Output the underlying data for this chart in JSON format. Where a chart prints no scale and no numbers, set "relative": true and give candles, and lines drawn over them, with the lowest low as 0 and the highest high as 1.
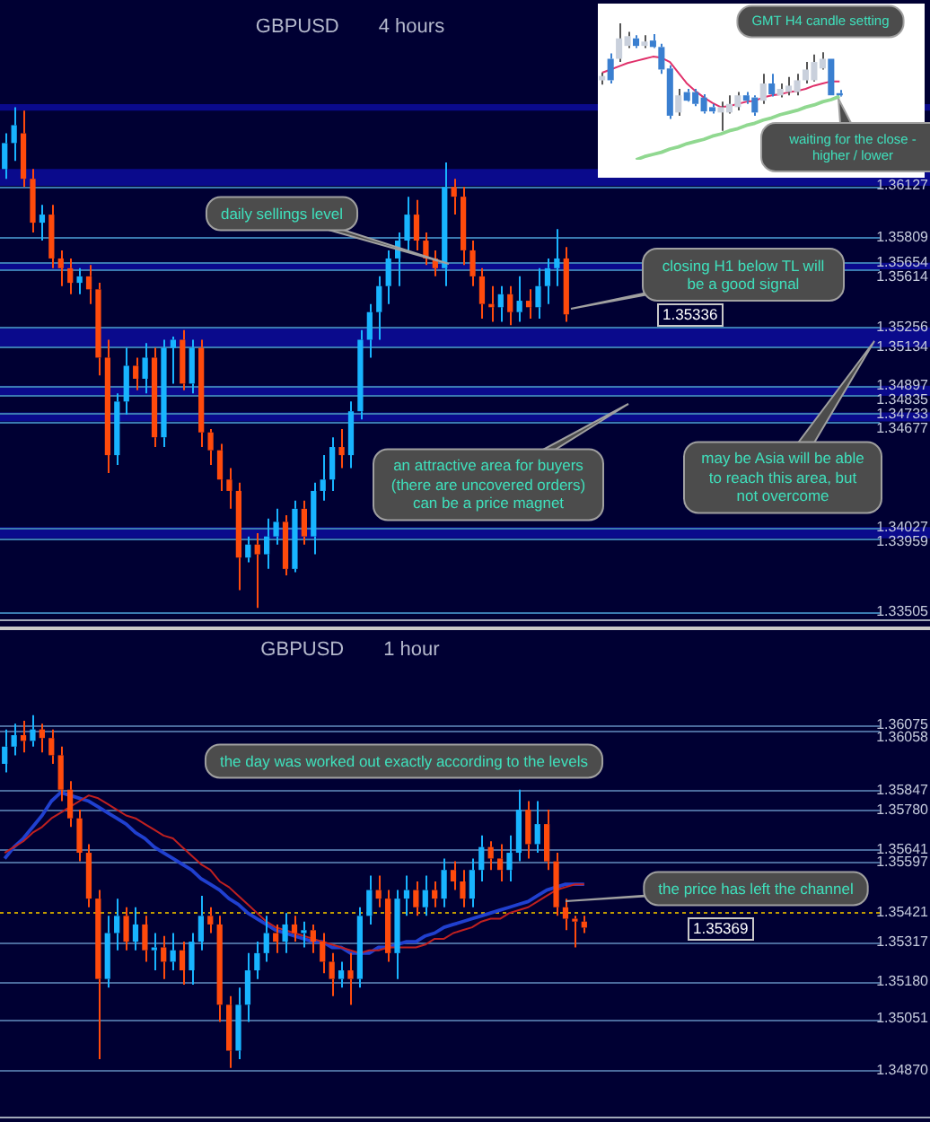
{
  "chart_data": [
    {
      "type": "candlestick",
      "title": "GBPUSD      4 hours",
      "tick_labels": false,
      "ylim": [
        1.3346,
        1.3727
      ],
      "categories": [
        null,
        null,
        null,
        null,
        null,
        null,
        null,
        null,
        null,
        null,
        null,
        null,
        null,
        null,
        null,
        null,
        null,
        null,
        null,
        null,
        null,
        null,
        null,
        null,
        null,
        null,
        null,
        null,
        null,
        null,
        null,
        null,
        null,
        null,
        null,
        null,
        null,
        null,
        null,
        null,
        null,
        null,
        null,
        null,
        null,
        null,
        null,
        null,
        null,
        null,
        null,
        null,
        null,
        null,
        null,
        null,
        null,
        null,
        null,
        null,
        null
      ],
      "ohlc": [
        [
          1.3623,
          1.3645,
          1.3617,
          1.3639
        ],
        [
          1.3639,
          1.3661,
          1.3628,
          1.365
        ],
        [
          1.3645,
          1.3659,
          1.3612,
          1.3617
        ],
        [
          1.3617,
          1.3623,
          1.3584,
          1.359
        ],
        [
          1.359,
          1.3601,
          1.3579,
          1.3595
        ],
        [
          1.3595,
          1.3601,
          1.3562,
          1.3568
        ],
        [
          1.3568,
          1.3573,
          1.3551,
          1.3562
        ],
        [
          1.3562,
          1.3568,
          1.3546,
          1.3553
        ],
        [
          1.3553,
          1.3562,
          1.3546,
          1.3557
        ],
        [
          1.3557,
          1.3564,
          1.354,
          1.3549
        ],
        [
          1.3549,
          1.3553,
          1.3496,
          1.3507
        ],
        [
          1.3507,
          1.3518,
          1.3436,
          1.3447
        ],
        [
          1.3447,
          1.3485,
          1.3441,
          1.348
        ],
        [
          1.348,
          1.3513,
          1.3472,
          1.3502
        ],
        [
          1.3502,
          1.3507,
          1.3487,
          1.3494
        ],
        [
          1.3494,
          1.3516,
          1.3485,
          1.3507
        ],
        [
          1.3507,
          1.3513,
          1.3452,
          1.3458
        ],
        [
          1.3458,
          1.3518,
          1.3452,
          1.3513
        ],
        [
          1.3513,
          1.352,
          1.3491,
          1.3518
        ],
        [
          1.3518,
          1.3524,
          1.3487,
          1.3491
        ],
        [
          1.3491,
          1.3518,
          1.3485,
          1.3513
        ],
        [
          1.3513,
          1.3518,
          1.3452,
          1.3461
        ],
        [
          1.3461,
          1.3463,
          1.3441,
          1.345
        ],
        [
          1.345,
          1.3454,
          1.3425,
          1.3432
        ],
        [
          1.3432,
          1.3439,
          1.3414,
          1.3425
        ],
        [
          1.3425,
          1.343,
          1.3364,
          1.3384
        ],
        [
          1.3384,
          1.3397,
          1.3381,
          1.3392
        ],
        [
          1.3392,
          1.3399,
          1.3353,
          1.3386
        ],
        [
          1.3386,
          1.3408,
          1.3377,
          1.3397
        ],
        [
          1.3397,
          1.3414,
          1.3392,
          1.3406
        ],
        [
          1.3406,
          1.341,
          1.3373,
          1.3377
        ],
        [
          1.3377,
          1.3419,
          1.3375,
          1.3414
        ],
        [
          1.3414,
          1.3419,
          1.3392,
          1.3397
        ],
        [
          1.3397,
          1.343,
          1.3386,
          1.3425
        ],
        [
          1.3425,
          1.3447,
          1.3419,
          1.3432
        ],
        [
          1.3432,
          1.3458,
          1.3425,
          1.3452
        ],
        [
          1.3452,
          1.3463,
          1.3439,
          1.3447
        ],
        [
          1.3447,
          1.348,
          1.3439,
          1.3474
        ],
        [
          1.3474,
          1.3524,
          1.3469,
          1.3518
        ],
        [
          1.3518,
          1.354,
          1.3507,
          1.3535
        ],
        [
          1.3535,
          1.3557,
          1.3518,
          1.3551
        ],
        [
          1.3551,
          1.3573,
          1.354,
          1.3568
        ],
        [
          1.3568,
          1.3584,
          1.3551,
          1.3579
        ],
        [
          1.3579,
          1.3606,
          1.3573,
          1.3595
        ],
        [
          1.3595,
          1.3604,
          1.3573,
          1.3579
        ],
        [
          1.3579,
          1.3584,
          1.3564,
          1.3568
        ],
        [
          1.3568,
          1.3573,
          1.3557,
          1.3562
        ],
        [
          1.3562,
          1.3627,
          1.3551,
          1.3612
        ],
        [
          1.3612,
          1.3617,
          1.3595,
          1.3606
        ],
        [
          1.3606,
          1.3612,
          1.3564,
          1.3573
        ],
        [
          1.3573,
          1.3579,
          1.3551,
          1.3557
        ],
        [
          1.3557,
          1.3562,
          1.3531,
          1.354
        ],
        [
          1.354,
          1.3551,
          1.3529,
          1.3538
        ],
        [
          1.3538,
          1.3551,
          1.3529,
          1.3546
        ],
        [
          1.3546,
          1.3551,
          1.3527,
          1.3535
        ],
        [
          1.3535,
          1.3557,
          1.3529,
          1.3542
        ],
        [
          1.3542,
          1.3549,
          1.3531,
          1.3538
        ],
        [
          1.3538,
          1.3562,
          1.3531,
          1.3551
        ],
        [
          1.3551,
          1.3568,
          1.354,
          1.3562
        ],
        [
          1.3562,
          1.3586,
          1.3551,
          1.3568
        ],
        [
          1.3568,
          1.3575,
          1.3529,
          1.35336
        ]
      ],
      "bands": [
        {
          "axis": "y",
          "from": 1.36127,
          "to": 1.3623,
          "color": "#0a0a8c"
        },
        {
          "axis": "y",
          "from": 1.3659,
          "to": 1.3663,
          "color": "#0a0a8c"
        },
        {
          "axis": "y",
          "from": 1.35614,
          "to": 1.35654,
          "color": "#0a0a8c"
        },
        {
          "axis": "y",
          "from": 1.35134,
          "to": 1.35256,
          "color": "#0a0a8c"
        },
        {
          "axis": "y",
          "from": 1.34835,
          "to": 1.34897,
          "color": "#0a0a8c"
        },
        {
          "axis": "y",
          "from": 1.34677,
          "to": 1.34733,
          "color": "#0a0a8c"
        },
        {
          "axis": "y",
          "from": 1.33959,
          "to": 1.34027,
          "color": "#0a0a8c"
        }
      ],
      "ref_lines": [
        {
          "axis": "y",
          "value": 1.36127,
          "label": "1.36127",
          "color": "#3a7ab0"
        },
        {
          "axis": "y",
          "value": 1.35809,
          "label": "1.35809",
          "color": "#3a7ab0"
        },
        {
          "axis": "y",
          "value": 1.35654,
          "label": "1.35654",
          "color": "#3a7ab0"
        },
        {
          "axis": "y",
          "value": 1.35614,
          "label": "1.35614",
          "color": "#3a7ab0"
        },
        {
          "axis": "y",
          "value": 1.35256,
          "label": "1.35256",
          "color": "#3a7ab0"
        },
        {
          "axis": "y",
          "value": 1.35134,
          "label": "1.35134",
          "color": "#3a7ab0"
        },
        {
          "axis": "y",
          "value": 1.34897,
          "label": "1.34897",
          "color": "#3a7ab0"
        },
        {
          "axis": "y",
          "value": 1.34835,
          "label": "1.34835",
          "color": "#3a7ab0"
        },
        {
          "axis": "y",
          "value": 1.34733,
          "label": "1.34733",
          "color": "#3a7ab0"
        },
        {
          "axis": "y",
          "value": 1.34677,
          "label": "1.34677",
          "color": "#3a7ab0"
        },
        {
          "axis": "y",
          "value": 1.34027,
          "label": "1.34027",
          "color": "#3a7ab0"
        },
        {
          "axis": "y",
          "value": 1.33959,
          "label": "1.33959",
          "color": "#3a7ab0"
        },
        {
          "axis": "y",
          "value": 1.33505,
          "label": "1.33505",
          "color": "#3a7ab0"
        }
      ],
      "annotations": [
        "daily sellings level",
        "closing H1 below TL will be a good signal",
        "1.35336",
        "an attractive area for buyers (there are uncovered orders) can be a price magnet",
        "may be Asia will be able to reach this area, but not overcome"
      ]
    },
    {
      "type": "candlestick",
      "relative": true,
      "tick_labels": false,
      "categories": [
        null,
        null,
        null,
        null,
        null,
        null,
        null,
        null,
        null,
        null,
        null,
        null,
        null,
        null,
        null,
        null,
        null,
        null,
        null,
        null,
        null,
        null,
        null,
        null,
        null,
        null,
        null,
        null,
        null
      ],
      "ohlc": [
        [
          0.47,
          0.54,
          0.43,
          0.51
        ],
        [
          0.67,
          0.72,
          0.44,
          0.47
        ],
        [
          0.67,
          1,
          0.64,
          0.86
        ],
        [
          0.79,
          0.92,
          0.77,
          0.88
        ],
        [
          0.86,
          0.89,
          0.77,
          0.79
        ],
        [
          0.79,
          0.89,
          0.77,
          0.83
        ],
        [
          0.84,
          0.9,
          0.77,
          0.78
        ],
        [
          0.78,
          0.81,
          0.53,
          0.57
        ],
        [
          0.58,
          0.61,
          0.11,
          0.14
        ],
        [
          0.17,
          0.39,
          0.14,
          0.33
        ],
        [
          0.36,
          0.39,
          0.27,
          0.28
        ],
        [
          0.36,
          0.39,
          0.23,
          0.25
        ],
        [
          0.31,
          0.34,
          0.16,
          0.18
        ],
        [
          0.22,
          0.25,
          0.16,
          0.18
        ],
        [
          0.17,
          0.27,
          0,
          0.22
        ],
        [
          0.17,
          0.33,
          0.16,
          0.25
        ],
        [
          0.22,
          0.36,
          0.19,
          0.33
        ],
        [
          0.33,
          0.36,
          0.25,
          0.28
        ],
        [
          0.31,
          0.33,
          0.14,
          0.17
        ],
        [
          0.28,
          0.53,
          0.25,
          0.44
        ],
        [
          0.44,
          0.53,
          0.32,
          0.34
        ],
        [
          0.33,
          0.44,
          0.31,
          0.39
        ],
        [
          0.36,
          0.5,
          0.33,
          0.42
        ],
        [
          0.36,
          0.53,
          0.33,
          0.47
        ],
        [
          0.47,
          0.64,
          0.44,
          0.57
        ],
        [
          0.47,
          0.71,
          0.46,
          0.64
        ],
        [
          0.58,
          0.73,
          0.57,
          0.67
        ],
        [
          0.67,
          0.67,
          0.33,
          0.33
        ],
        [
          0.35,
          0.38,
          0.32,
          0.33
        ]
      ],
      "series": [
        {
          "type": "line",
          "color": "#e0306a",
          "values": [
            0.54,
            0.57,
            0.6,
            0.63,
            0.65,
            0.67,
            0.69,
            0.68,
            0.64,
            0.54,
            0.44,
            0.37,
            0.31,
            0.26,
            0.22,
            0.23,
            0.25,
            0.27,
            0.28,
            0.31,
            0.33,
            0.34,
            0.36,
            0.37,
            0.39,
            0.42,
            0.44,
            0.46,
            0.46
          ]
        },
        {
          "type": "line",
          "color": "#90d890",
          "values": [
            null,
            null,
            null,
            null,
            -0.27,
            -0.24,
            -0.22,
            -0.2,
            -0.17,
            -0.15,
            -0.12,
            -0.1,
            -0.08,
            -0.05,
            -0.03,
            0,
            0.02,
            0.05,
            0.07,
            0.1,
            0.12,
            0.15,
            0.17,
            0.19,
            0.22,
            0.24,
            0.27,
            0.29,
            0.32
          ]
        }
      ],
      "annotations": [
        "GMT H4 candle setting",
        "waiting for the close - higher / lower"
      ]
    },
    {
      "type": "candlestick",
      "title": "GBPUSD       1 hour",
      "tick_labels": false,
      "ylim": [
        1.3471,
        1.364
      ],
      "categories": [
        null,
        null,
        null,
        null,
        null,
        null,
        null,
        null,
        null,
        null,
        null,
        null,
        null,
        null,
        null,
        null,
        null,
        null,
        null,
        null,
        null,
        null,
        null,
        null,
        null,
        null,
        null,
        null,
        null,
        null,
        null,
        null,
        null,
        null,
        null,
        null,
        null,
        null,
        null,
        null,
        null,
        null,
        null,
        null,
        null,
        null,
        null,
        null,
        null,
        null,
        null,
        null,
        null,
        null,
        null,
        null,
        null,
        null,
        null,
        null,
        null,
        null,
        null
      ],
      "ohlc": [
        [
          1.3594,
          1.3606,
          1.3591,
          1.36
        ],
        [
          1.36,
          1.3608,
          1.3597,
          1.3604
        ],
        [
          1.3604,
          1.3609,
          1.3598,
          1.3602
        ],
        [
          1.3602,
          1.3611,
          1.36,
          1.3606
        ],
        [
          1.3606,
          1.3608,
          1.3598,
          1.3603
        ],
        [
          1.3603,
          1.3606,
          1.3594,
          1.3597
        ],
        [
          1.3597,
          1.36,
          1.3581,
          1.3585
        ],
        [
          1.3585,
          1.3588,
          1.3572,
          1.3575
        ],
        [
          1.3575,
          1.3578,
          1.356,
          1.3563
        ],
        [
          1.3563,
          1.3566,
          1.3544,
          1.3547
        ],
        [
          1.3547,
          1.355,
          1.3491,
          1.3519
        ],
        [
          1.3519,
          1.3541,
          1.3516,
          1.3535
        ],
        [
          1.3535,
          1.3547,
          1.3529,
          1.3541
        ],
        [
          1.3541,
          1.3544,
          1.3529,
          1.3532
        ],
        [
          1.3532,
          1.3544,
          1.3529,
          1.3538
        ],
        [
          1.3538,
          1.3541,
          1.3525,
          1.3529
        ],
        [
          1.3529,
          1.3535,
          1.3522,
          1.353
        ],
        [
          1.353,
          1.3534,
          1.3519,
          1.3525
        ],
        [
          1.3525,
          1.3535,
          1.3522,
          1.3529
        ],
        [
          1.3529,
          1.3532,
          1.3517,
          1.3522
        ],
        [
          1.3522,
          1.3535,
          1.3517,
          1.3532
        ],
        [
          1.3532,
          1.3548,
          1.3529,
          1.3541
        ],
        [
          1.3541,
          1.3544,
          1.3535,
          1.3538
        ],
        [
          1.3538,
          1.3541,
          1.3504,
          1.351
        ],
        [
          1.351,
          1.3513,
          1.3488,
          1.3494
        ],
        [
          1.3494,
          1.3516,
          1.3491,
          1.351
        ],
        [
          1.351,
          1.3528,
          1.3504,
          1.3522
        ],
        [
          1.3522,
          1.3532,
          1.3519,
          1.3528
        ],
        [
          1.3528,
          1.3541,
          1.3525,
          1.3535
        ],
        [
          1.3535,
          1.3538,
          1.3528,
          1.3532
        ],
        [
          1.3532,
          1.3542,
          1.3528,
          1.3538
        ],
        [
          1.3538,
          1.3541,
          1.3532,
          1.3535
        ],
        [
          1.3535,
          1.3539,
          1.353,
          1.3536
        ],
        [
          1.3536,
          1.3538,
          1.3528,
          1.3532
        ],
        [
          1.3532,
          1.3535,
          1.3521,
          1.3525
        ],
        [
          1.3525,
          1.3528,
          1.3513,
          1.3519
        ],
        [
          1.3519,
          1.3525,
          1.3516,
          1.3522
        ],
        [
          1.3522,
          1.3528,
          1.351,
          1.3519
        ],
        [
          1.3519,
          1.3544,
          1.3516,
          1.3541
        ],
        [
          1.3541,
          1.3555,
          1.3538,
          1.355
        ],
        [
          1.355,
          1.3555,
          1.3544,
          1.3547
        ],
        [
          1.3547,
          1.355,
          1.3525,
          1.3528
        ],
        [
          1.3528,
          1.355,
          1.3519,
          1.3547
        ],
        [
          1.3547,
          1.3555,
          1.3541,
          1.355
        ],
        [
          1.355,
          1.3553,
          1.3541,
          1.3544
        ],
        [
          1.3544,
          1.3555,
          1.3541,
          1.355
        ],
        [
          1.355,
          1.3553,
          1.3544,
          1.3547
        ],
        [
          1.3547,
          1.3561,
          1.3544,
          1.3557
        ],
        [
          1.3557,
          1.356,
          1.355,
          1.3553
        ],
        [
          1.3553,
          1.3557,
          1.3544,
          1.3547
        ],
        [
          1.3547,
          1.3561,
          1.3544,
          1.3557
        ],
        [
          1.3557,
          1.3569,
          1.3553,
          1.3565
        ],
        [
          1.3565,
          1.3567,
          1.3557,
          1.3561
        ],
        [
          1.3561,
          1.3566,
          1.3553,
          1.3557
        ],
        [
          1.3557,
          1.3569,
          1.3553,
          1.3563
        ],
        [
          1.3563,
          1.3585,
          1.356,
          1.3578
        ],
        [
          1.3578,
          1.3581,
          1.3561,
          1.3566
        ],
        [
          1.3566,
          1.3581,
          1.3563,
          1.3573
        ],
        [
          1.3573,
          1.3578,
          1.3557,
          1.356
        ],
        [
          1.356,
          1.3563,
          1.3541,
          1.3544
        ],
        [
          1.3544,
          1.3547,
          1.3536,
          1.354
        ],
        [
          1.354,
          1.3541,
          1.353,
          1.3539
        ],
        [
          1.3539,
          1.3541,
          1.3535,
          1.35369
        ]
      ],
      "series": [
        {
          "type": "line",
          "color": "#c02020",
          "values": [
            1.3563,
            1.3565,
            1.3567,
            1.357,
            1.3572,
            1.3575,
            1.3577,
            1.3579,
            1.3581,
            1.3583,
            1.3582,
            1.358,
            1.3578,
            1.3576,
            1.3575,
            1.3573,
            1.3571,
            1.3569,
            1.3568,
            1.3565,
            1.3562,
            1.3559,
            1.3557,
            1.3553,
            1.3551,
            1.3548,
            1.3545,
            1.3542,
            1.3539,
            1.3537,
            1.3536,
            1.3535,
            1.3534,
            1.3533,
            1.3532,
            1.3531,
            1.353,
            1.3529,
            1.3528,
            1.3529,
            1.3529,
            1.353,
            1.353,
            1.353,
            1.353,
            1.3531,
            1.3533,
            1.3533,
            1.3535,
            1.3536,
            1.3537,
            1.3539,
            1.354,
            1.354,
            1.3542,
            1.3543,
            1.3544,
            1.3546,
            1.3548,
            1.355,
            1.3551,
            1.3552,
            1.3552
          ]
        },
        {
          "type": "line",
          "color": "#2040d0",
          "values": [
            1.3561,
            1.3565,
            1.3568,
            1.3572,
            1.3576,
            1.3581,
            1.3584,
            1.3583,
            1.3582,
            1.3581,
            1.3579,
            1.3577,
            1.3575,
            1.3573,
            1.357,
            1.3568,
            1.3565,
            1.3563,
            1.3561,
            1.3559,
            1.3557,
            1.3554,
            1.3552,
            1.355,
            1.3547,
            1.3545,
            1.3542,
            1.354,
            1.3538,
            1.3536,
            1.3535,
            1.3534,
            1.3533,
            1.3532,
            1.3532,
            1.353,
            1.353,
            1.3528,
            1.3528,
            1.3528,
            1.353,
            1.353,
            1.3531,
            1.3532,
            1.3532,
            1.3534,
            1.3535,
            1.3537,
            1.3538,
            1.3539,
            1.354,
            1.3541,
            1.3542,
            1.3543,
            1.3544,
            1.3545,
            1.3546,
            1.3548,
            1.355,
            1.3551,
            1.3552,
            1.3552,
            1.3552
          ]
        }
      ],
      "ref_lines": [
        {
          "axis": "y",
          "value": 1.36075,
          "label": "1.36075",
          "color": "#4a6a9c"
        },
        {
          "axis": "y",
          "value": 1.36058,
          "label": "1.36058",
          "color": "#4a6a9c"
        },
        {
          "axis": "y",
          "value": 1.35847,
          "label": "1.35847",
          "color": "#4a6a9c"
        },
        {
          "axis": "y",
          "value": 1.3578,
          "label": "1.35780",
          "color": "#4a6a9c"
        },
        {
          "axis": "y",
          "value": 1.35641,
          "label": "1.35641",
          "color": "#4a6a9c"
        },
        {
          "axis": "y",
          "value": 1.35597,
          "label": "1.35597",
          "color": "#4a6a9c"
        },
        {
          "axis": "y",
          "value": 1.35421,
          "label": "1.35421",
          "color": "#c09a00",
          "line_style": "dotted"
        },
        {
          "axis": "y",
          "value": 1.35317,
          "label": "1.35317",
          "color": "#4a6a9c"
        },
        {
          "axis": "y",
          "value": 1.3518,
          "label": "1.35180",
          "color": "#4a6a9c"
        },
        {
          "axis": "y",
          "value": 1.35051,
          "label": "1.35051",
          "color": "#4a6a9c"
        },
        {
          "axis": "y",
          "value": 1.3487,
          "label": "1.34870",
          "color": "#4a6a9c"
        }
      ],
      "annotations": [
        "the day was worked out exactly according to the levels",
        "the price has left the channel",
        "1.35369"
      ]
    }
  ]
}
